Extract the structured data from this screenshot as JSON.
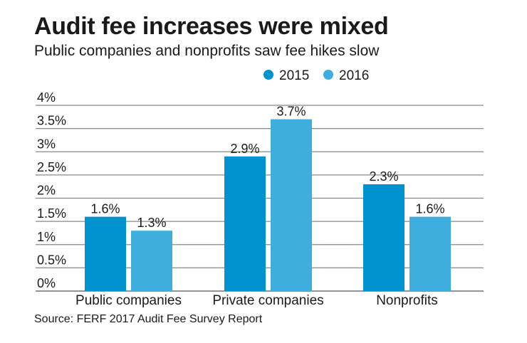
{
  "chart_data": {
    "type": "bar",
    "title": "Audit fee increases were mixed",
    "subtitle": "Public companies and nonprofits saw fee hikes slow",
    "categories": [
      "Public companies",
      "Private companies",
      "Nonprofits"
    ],
    "series": [
      {
        "name": "2015",
        "values": [
          1.6,
          2.9,
          2.3
        ],
        "color": "#0093d0",
        "labels": [
          "1.6%",
          "2.9%",
          "2.3%"
        ]
      },
      {
        "name": "2016",
        "values": [
          1.3,
          3.7,
          1.6
        ],
        "color": "#3daede",
        "labels": [
          "1.3%",
          "3.7%",
          "1.6%"
        ]
      }
    ],
    "yticks": [
      0,
      0.5,
      1,
      1.5,
      2,
      2.5,
      3,
      3.5,
      4
    ],
    "ytick_labels": [
      "0%",
      "0.5%",
      "1%",
      "1.5%",
      "2%",
      "2.5%",
      "3%",
      "3.5%",
      "4%"
    ],
    "ylim": [
      0,
      4
    ],
    "grid": true,
    "legend_position": "top-right",
    "source": "Source: FERF 2017 Audit Fee Survey Report"
  }
}
